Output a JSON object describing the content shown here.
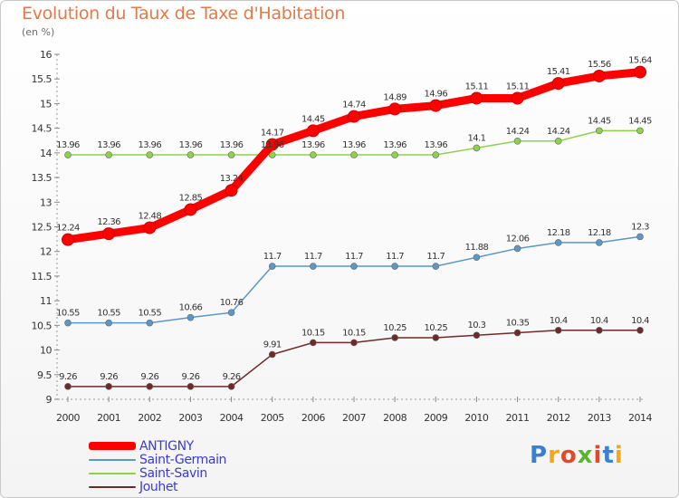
{
  "chart_data": {
    "type": "line",
    "title": "Evolution du Taux de Taxe d'Habitation",
    "subtitle": "(en %)",
    "x": [
      "2000",
      "2001",
      "2002",
      "2003",
      "2004",
      "2005",
      "2006",
      "2007",
      "2008",
      "2009",
      "2010",
      "2011",
      "2012",
      "2013",
      "2014"
    ],
    "ylim": [
      9,
      16
    ],
    "yticks": [
      "9",
      "9.5",
      "10",
      "10.5",
      "11",
      "11.5",
      "12",
      "12.5",
      "13",
      "13.5",
      "14",
      "14.5",
      "15",
      "15.5",
      "16"
    ],
    "grid": false,
    "legend_position": "bottom-left",
    "series": [
      {
        "name": "ANTIGNY",
        "color": "#ff0000",
        "values": [
          12.24,
          12.36,
          12.48,
          12.85,
          13.24,
          14.17,
          14.45,
          14.74,
          14.89,
          14.96,
          15.11,
          15.11,
          15.41,
          15.56,
          15.64
        ],
        "labels": [
          "12.24",
          "12.36",
          "12.48",
          "12.85",
          "13.24",
          "14.17",
          "14.45",
          "14.74",
          "14.89",
          "14.96",
          "15.11",
          "15.11",
          "15.41",
          "15.56",
          "15.64"
        ]
      },
      {
        "name": "Saint-Germain",
        "color": "#5b97c7",
        "values": [
          10.55,
          10.55,
          10.55,
          10.66,
          10.76,
          11.7,
          11.7,
          11.7,
          11.7,
          11.7,
          11.88,
          12.06,
          12.18,
          12.18,
          12.3
        ],
        "labels": [
          "10.55",
          "10.55",
          "10.55",
          "10.66",
          "10.76",
          "11.7",
          "11.7",
          "11.7",
          "11.7",
          "11.7",
          "11.88",
          "12.06",
          "12.18",
          "12.18",
          "12.3"
        ]
      },
      {
        "name": "Saint-Savin",
        "color": "#8fd14f",
        "values": [
          13.96,
          13.96,
          13.96,
          13.96,
          13.96,
          13.96,
          13.96,
          13.96,
          13.96,
          13.96,
          14.1,
          14.24,
          14.24,
          14.45,
          14.45
        ],
        "labels": [
          "13.96",
          "13.96",
          "13.96",
          "13.96",
          "13.96",
          "13.96",
          "13.96",
          "13.96",
          "13.96",
          "13.96",
          "14.1",
          "14.24",
          "14.24",
          "14.45",
          "14.45"
        ]
      },
      {
        "name": "Jouhet",
        "color": "#6e2a2a",
        "values": [
          9.26,
          9.26,
          9.26,
          9.26,
          9.26,
          9.91,
          10.15,
          10.15,
          10.25,
          10.25,
          10.3,
          10.35,
          10.4,
          10.4,
          10.4
        ],
        "labels": [
          "9.26",
          "9.26",
          "9.26",
          "9.26",
          "9.26",
          "9.91",
          "10.15",
          "10.15",
          "10.25",
          "10.25",
          "10.3",
          "10.35",
          "10.4",
          "10.4",
          "10.4"
        ]
      }
    ]
  },
  "logo": {
    "letters": [
      "P",
      "r",
      "o",
      "x",
      "i",
      "t",
      "i"
    ],
    "colors": [
      "#3b7fd1",
      "#f2a71b",
      "#e04a2a",
      "#5cb531",
      "#e04a2a",
      "#3b7fd1",
      "#f2a71b"
    ]
  }
}
